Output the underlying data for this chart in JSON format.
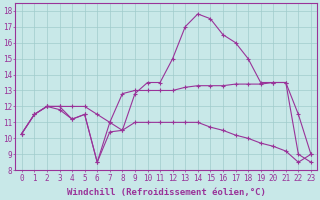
{
  "line1_x": [
    0,
    1,
    2,
    3,
    4,
    5,
    6,
    7,
    8,
    9,
    10,
    11,
    12,
    13,
    14,
    15,
    16,
    17,
    18,
    19,
    20,
    21,
    22,
    23
  ],
  "line1_y": [
    10.3,
    11.5,
    12.0,
    12.0,
    11.2,
    11.5,
    8.5,
    11.0,
    10.5,
    12.8,
    13.5,
    13.5,
    15.0,
    17.0,
    17.8,
    17.5,
    16.5,
    16.0,
    15.0,
    13.5,
    13.5,
    13.5,
    11.5,
    9.0
  ],
  "line2_x": [
    0,
    1,
    2,
    3,
    4,
    5,
    6,
    7,
    8,
    9,
    10,
    11,
    12,
    13,
    14,
    15,
    16,
    17,
    18,
    19,
    20,
    21,
    22,
    23
  ],
  "line2_y": [
    10.3,
    11.5,
    12.0,
    12.0,
    12.0,
    12.0,
    11.5,
    11.0,
    12.8,
    13.0,
    13.0,
    13.0,
    13.0,
    13.2,
    13.3,
    13.3,
    13.3,
    13.4,
    13.4,
    13.4,
    13.5,
    13.5,
    9.0,
    8.5
  ],
  "line3_x": [
    0,
    1,
    2,
    3,
    4,
    5,
    6,
    7,
    8,
    9,
    10,
    11,
    12,
    13,
    14,
    15,
    16,
    17,
    18,
    19,
    20,
    21,
    22,
    23
  ],
  "line3_y": [
    10.3,
    11.5,
    12.0,
    11.8,
    11.2,
    11.5,
    8.5,
    10.4,
    10.5,
    11.0,
    11.0,
    11.0,
    11.0,
    11.0,
    11.0,
    10.7,
    10.5,
    10.2,
    10.0,
    9.7,
    9.5,
    9.2,
    8.5,
    9.0
  ],
  "color": "#993399",
  "bgcolor": "#c8e8e8",
  "xlabel": "Windchill (Refroidissement éolien,°C)",
  "ylim": [
    8,
    18.5
  ],
  "xlim": [
    -0.5,
    23.5
  ],
  "yticks": [
    8,
    9,
    10,
    11,
    12,
    13,
    14,
    15,
    16,
    17,
    18
  ],
  "xticks": [
    0,
    1,
    2,
    3,
    4,
    5,
    6,
    7,
    8,
    9,
    10,
    11,
    12,
    13,
    14,
    15,
    16,
    17,
    18,
    19,
    20,
    21,
    22,
    23
  ],
  "grid_color": "#a0cccc",
  "marker": "+",
  "linewidth": 0.8,
  "marker_size": 3,
  "tick_fontsize": 5.5,
  "xlabel_fontsize": 6.5
}
